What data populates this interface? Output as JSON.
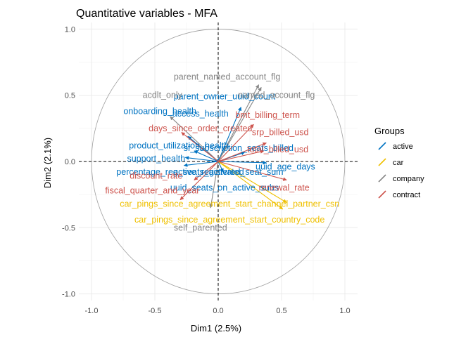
{
  "chart_data": {
    "type": "scatter",
    "title": "Quantitative variables - MFA",
    "xlabel": "Dim1 (2.5%)",
    "ylabel": "Dim2 (2.1%)",
    "xlim": [
      -1.1,
      1.1
    ],
    "ylim": [
      -1.05,
      1.05
    ],
    "x_ticks": [
      -1.0,
      -0.5,
      0.0,
      0.5,
      1.0
    ],
    "y_ticks": [
      -1.0,
      -0.5,
      0.0,
      0.5,
      1.0
    ],
    "x_tick_labels": [
      "-1.0",
      "-0.5",
      "0.0",
      "0.5",
      "1.0"
    ],
    "y_tick_labels": [
      "-1.0",
      "-0.5",
      "0.0",
      "0.5",
      "1.0"
    ],
    "grid": true,
    "unit_circle": true,
    "legend": {
      "title": "Groups",
      "position": "right",
      "entries": [
        {
          "name": "active",
          "color": "#0073C2"
        },
        {
          "name": "car",
          "color": "#EFC000"
        },
        {
          "name": "company",
          "color": "#868686"
        },
        {
          "name": "contract",
          "color": "#CD534C"
        }
      ]
    },
    "variables": [
      {
        "name": "parent_owner_uuid_count",
        "group": "active",
        "x": 0.18,
        "y": 0.41,
        "lx": 0.05,
        "ly": 0.49
      },
      {
        "name": "access_health",
        "group": "active",
        "x": -0.24,
        "y": 0.19,
        "lx": -0.14,
        "ly": 0.36
      },
      {
        "name": "onboarding_health",
        "group": "active",
        "x": -0.24,
        "y": 0.19,
        "lx": -0.46,
        "ly": 0.38
      },
      {
        "name": "product_utilization_health",
        "group": "active",
        "x": -0.19,
        "y": 0.08,
        "lx": -0.31,
        "ly": 0.12
      },
      {
        "name": "support_health",
        "group": "active",
        "x": -0.26,
        "y": 0.03,
        "lx": -0.49,
        "ly": 0.02
      },
      {
        "name": "percentage_reg_seats_activated",
        "group": "active",
        "x": -0.27,
        "y": -0.03,
        "lx": -0.3,
        "ly": -0.08
      },
      {
        "name": "active_registered_seat_sum",
        "group": "active",
        "x": 0.01,
        "y": 0.03,
        "lx": 0.08,
        "ly": -0.08
      },
      {
        "name": "uuid_seats_on_active_subs",
        "group": "active",
        "x": 0.04,
        "y": -0.08,
        "lx": 0.05,
        "ly": -0.2
      },
      {
        "name": "uuid_age_days",
        "group": "active",
        "x": 0.38,
        "y": -0.01,
        "lx": 0.53,
        "ly": -0.04
      },
      {
        "name": "sf_subscription_seats_billed",
        "group": "active",
        "x": 0.21,
        "y": 0.07,
        "lx": 0.16,
        "ly": 0.1
      },
      {
        "name": "car_pings_since_agreement_start_channel_partner_csn",
        "group": "car",
        "x": 0.51,
        "y": -0.36,
        "lx": 0.09,
        "ly": -0.32
      },
      {
        "name": "car_pings_since_agreement_start_country_code",
        "group": "car",
        "x": 0.54,
        "y": -0.31,
        "lx": 0.09,
        "ly": -0.44
      },
      {
        "name": "parent_named_account_flg",
        "group": "company",
        "x": 0.32,
        "y": 0.58,
        "lx": 0.07,
        "ly": 0.64
      },
      {
        "name": "named_account_flg",
        "group": "company",
        "x": 0.34,
        "y": 0.56,
        "lx": 0.46,
        "ly": 0.5
      },
      {
        "name": "acdlt_only",
        "group": "company",
        "x": -0.38,
        "y": 0.34,
        "lx": -0.44,
        "ly": 0.5
      },
      {
        "name": "self_parented",
        "group": "company",
        "x": -0.06,
        "y": -0.35,
        "lx": -0.14,
        "ly": -0.5
      },
      {
        "name": "bmt_billing_term",
        "group": "contract",
        "x": 0.28,
        "y": 0.28,
        "lx": 0.39,
        "ly": 0.35
      },
      {
        "name": "days_since_order_created",
        "group": "contract",
        "x": -0.29,
        "y": 0.22,
        "lx": -0.14,
        "ly": 0.25
      },
      {
        "name": "srp_billed_usd",
        "group": "contract",
        "x": 0.38,
        "y": 0.14,
        "lx": 0.49,
        "ly": 0.22
      },
      {
        "name": "total_billed_usd",
        "group": "contract",
        "x": 0.36,
        "y": 0.08,
        "lx": 0.47,
        "ly": 0.09
      },
      {
        "name": "fiscal_quarter_and_year",
        "group": "contract",
        "x": -0.3,
        "y": -0.29,
        "lx": -0.52,
        "ly": -0.22
      },
      {
        "name": "discount_rate",
        "group": "contract",
        "x": -0.19,
        "y": -0.14,
        "lx": -0.49,
        "ly": -0.11
      },
      {
        "name": "renewal_rate",
        "group": "contract",
        "x": 0.54,
        "y": -0.14,
        "lx": 0.52,
        "ly": -0.2
      }
    ]
  }
}
